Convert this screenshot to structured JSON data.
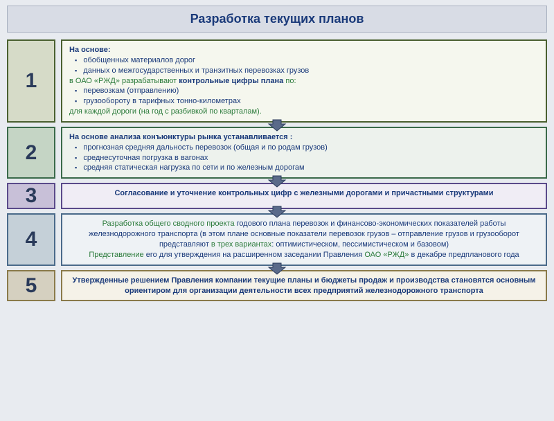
{
  "title": "Разработка текущих планов",
  "title_color": "#1a3a7a",
  "header_bg": "#d8dce5",
  "arrow_fill": "#5a6a8a",
  "arrow_stroke": "#2a3a5a",
  "steps": [
    {
      "num": "1",
      "num_bg": "#d6dbc8",
      "num_border": "#4a6030",
      "num_color": "#2a3a5a",
      "box_bg": "#f5f7ee",
      "box_border": "#4a6030",
      "text_color": "#1a3a7a",
      "green_color": "#2a7a3a",
      "has_arrow": true,
      "lines": [
        {
          "text": "На основе:",
          "bold": true,
          "color": "text_color"
        },
        {
          "bullet": true,
          "text": "обобщенных материалов дорог",
          "color": "text_color"
        },
        {
          "bullet": true,
          "text": "данных о межгосударственных и транзитных перевозках грузов",
          "color": "text_color"
        },
        {
          "spans": [
            {
              "text": "в ОАО «РЖД» разрабатывают ",
              "color": "green_color"
            },
            {
              "text": "контрольные цифры плана",
              "bold": true,
              "color": "text_color"
            },
            {
              "text": " по:",
              "color": "green_color"
            }
          ]
        },
        {
          "bullet": true,
          "text": "перевозкам (отправлению)",
          "color": "text_color"
        },
        {
          "bullet": true,
          "text": "грузообороту в тарифных тонно-километрах",
          "color": "text_color"
        },
        {
          "text": "для каждой дороги (на год с разбивкой по кварталам).",
          "color": "green_color"
        }
      ]
    },
    {
      "num": "2",
      "num_bg": "#c5d5c5",
      "num_border": "#3a6a4a",
      "num_color": "#2a3a5a",
      "box_bg": "#edf2ed",
      "box_border": "#3a6a4a",
      "text_color": "#1a3a7a",
      "has_arrow": true,
      "lines": [
        {
          "text": "На основе анализа конъюнктуры рынка устанавливается :",
          "bold": true,
          "color": "text_color"
        },
        {
          "bullet": true,
          "text": "прогнозная средняя дальность перевозок (общая и по родам грузов)",
          "color": "text_color"
        },
        {
          "bullet": true,
          "text": "среднесуточная погрузка в вагонах",
          "color": "text_color"
        },
        {
          "bullet": true,
          "text": "средняя статическая нагрузка по сети и по железным дорогам",
          "color": "text_color"
        }
      ]
    },
    {
      "num": "3",
      "num_bg": "#c8c0d8",
      "num_border": "#5a4a8a",
      "num_color": "#2a3a5a",
      "box_bg": "#f0edf5",
      "box_border": "#5a4a8a",
      "text_color": "#1a3a7a",
      "has_arrow": true,
      "center": true,
      "lines": [
        {
          "text": "Согласование и уточнение контрольных цифр с железными дорогами и причастными структурами",
          "bold": true,
          "color": "text_color"
        }
      ]
    },
    {
      "num": "4",
      "num_bg": "#c5d0d8",
      "num_border": "#4a6a8a",
      "num_color": "#2a3a5a",
      "box_bg": "#eef2f5",
      "box_border": "#4a6a8a",
      "text_color": "#1a3a7a",
      "green_color": "#2a7a3a",
      "has_arrow": true,
      "center": true,
      "lines": [
        {
          "spans": [
            {
              "text": "Разработка общего сводного проекта ",
              "color": "green_color"
            },
            {
              "text": "годового плана перевозок и финансово-экономических показателей работы железнодорожного транспорта (в этом плане основные показатели перевозок грузов – отправление грузов и грузооборот представляют ",
              "color": "text_color"
            },
            {
              "text": "в трех вариантах",
              "color": "green_color"
            },
            {
              "text": ": оптимистическом, пессимистическом и базовом)",
              "color": "text_color"
            }
          ]
        },
        {
          "spans": [
            {
              "text": "Представление ",
              "color": "green_color"
            },
            {
              "text": "его для утверждения на расширенном заседании Правления ",
              "color": "text_color"
            },
            {
              "text": "ОАО «РЖД» ",
              "color": "green_color"
            },
            {
              "text": "в декабре предпланового года",
              "color": "text_color"
            }
          ]
        }
      ]
    },
    {
      "num": "5",
      "num_bg": "#d5d0c0",
      "num_border": "#8a7a4a",
      "num_color": "#2a3a5a",
      "box_bg": "#f5f2e8",
      "box_border": "#8a7a4a",
      "text_color": "#1a3a7a",
      "has_arrow": false,
      "center": true,
      "lines": [
        {
          "text": "Утвержденные решением Правления компании текущие планы и бюджеты продаж и производства становятся основным ориентиром для организации деятельности всех предприятий железнодорожного транспорта",
          "bold": true,
          "color": "text_color"
        }
      ]
    }
  ]
}
